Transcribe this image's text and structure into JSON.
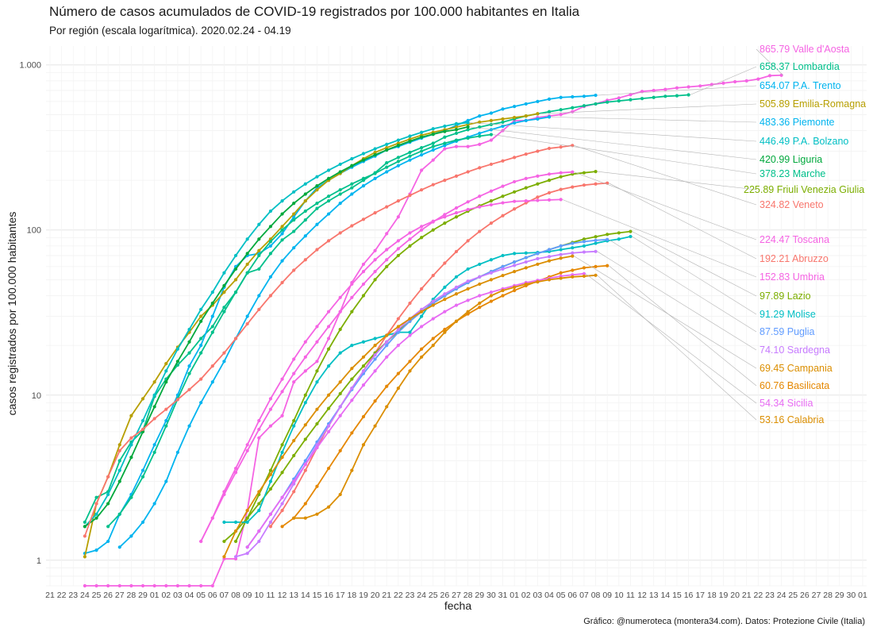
{
  "chart_data": {
    "type": "line",
    "title": "Número de casos acumulados de COVID-19 registrados por 100.000 habitantes en Italia",
    "subtitle": "Por región (escala logarítmica). 2020.02.24 - 04.19",
    "caption": "Gráfico: @numeroteca (montera34.com). Datos: Protezione Civile (Italia)",
    "xlabel": "fecha",
    "ylabel": "casos registrados por 100.000 habitantes",
    "yscale": "log",
    "ylim": [
      0.7,
      1300
    ],
    "xlim": [
      "2020-02-21",
      "2020-05-01"
    ],
    "grid": true,
    "legend": "direct labels at right end of lines",
    "y_ticks": [
      {
        "value": 1,
        "label": "1"
      },
      {
        "value": 10,
        "label": "10"
      },
      {
        "value": 100,
        "label": "100"
      },
      {
        "value": 1000,
        "label": "1.000"
      }
    ],
    "x_ticks": [
      "21",
      "22",
      "23",
      "24",
      "25",
      "26",
      "27",
      "28",
      "29",
      "01",
      "02",
      "03",
      "04",
      "05",
      "06",
      "07",
      "08",
      "09",
      "10",
      "11",
      "12",
      "13",
      "14",
      "15",
      "16",
      "17",
      "18",
      "19",
      "20",
      "21",
      "22",
      "23",
      "24",
      "25",
      "26",
      "27",
      "28",
      "29",
      "30",
      "31",
      "01",
      "02",
      "03",
      "04",
      "05",
      "06",
      "07",
      "08",
      "09",
      "10",
      "11",
      "12",
      "13",
      "14",
      "15",
      "16",
      "17",
      "18",
      "19",
      "20",
      "21",
      "22",
      "23",
      "24",
      "25",
      "26",
      "27",
      "28",
      "29",
      "30",
      "01"
    ],
    "x_start": "2020-02-21",
    "series": [
      {
        "name": "Valle d'Aosta",
        "label": "865.79 Valle d'Aosta",
        "color": "#f564e3",
        "start": "2020-02-24",
        "values": [
          0.7,
          0.7,
          0.7,
          0.7,
          0.7,
          0.7,
          0.7,
          0.7,
          0.7,
          0.7,
          0.7,
          0.7,
          1.02,
          1.02,
          2.0,
          5.5,
          6.5,
          7.5,
          12,
          14,
          16,
          22,
          32,
          48,
          62,
          75,
          95,
          120,
          165,
          230,
          265,
          310,
          320,
          320,
          330,
          350,
          400,
          460,
          460,
          480,
          490,
          500,
          520,
          560,
          580,
          610,
          630,
          660,
          690,
          700,
          710,
          725,
          735,
          745,
          760,
          775,
          790,
          800,
          820,
          860,
          865.79
        ]
      },
      {
        "name": "Lombardia",
        "label": "658.37 Lombardia",
        "color": "#00c08b",
        "start": "2020-02-24",
        "values": [
          1.7,
          2.4,
          2.6,
          4.0,
          5.2,
          6.1,
          9.8,
          12.5,
          15.2,
          18.0,
          22.0,
          26.0,
          34.0,
          42.0,
          55.0,
          58.0,
          72.0,
          87.0,
          98.0,
          115.0,
          135.0,
          150.0,
          165.0,
          180.0,
          200.0,
          222.0,
          255.0,
          275.0,
          295.0,
          315.0,
          335.0,
          365.0,
          385.0,
          405.0,
          420.0,
          435.0,
          450.0,
          470.0,
          490.0,
          505.0,
          520.0,
          535.0,
          550.0,
          565.0,
          580.0,
          595.0,
          605.0,
          615.0,
          625.0,
          635.0,
          645.0,
          650.0,
          658.37
        ]
      },
      {
        "name": "P.A. Trento",
        "label": "654.07 P.A. Trento",
        "color": "#00b4ef",
        "start": "2020-02-24",
        "values": [
          1.1,
          1.15,
          1.3,
          1.9,
          2.5,
          3.5,
          5.0,
          7.0,
          10.0,
          15.0,
          20.0,
          30.0,
          45.0,
          60.0,
          70.0,
          72.0,
          80.0,
          95.0,
          120.0,
          150.0,
          180.0,
          200.0,
          220.0,
          240.0,
          260.0,
          280.0,
          305.0,
          320.0,
          340.0,
          360.0,
          380.0,
          400.0,
          430.0,
          460.0,
          490.0,
          510.0,
          540.0,
          560.0,
          580.0,
          600.0,
          620.0,
          635.0,
          640.0,
          645.0,
          654.07
        ]
      },
      {
        "name": "Emilia-Romagna",
        "label": "505.89 Emilia-Romagna",
        "color": "#b79f00",
        "start": "2020-02-24",
        "values": [
          1.05,
          2.2,
          3.2,
          5.0,
          7.5,
          9.5,
          12.0,
          15.5,
          19.5,
          24.0,
          30.0,
          35.0,
          42.0,
          50.0,
          62.0,
          75.0,
          88.0,
          105.0,
          125.0,
          150.0,
          175.0,
          200.0,
          220.0,
          245.0,
          270.0,
          295.0,
          315.0,
          335.0,
          355.0,
          375.0,
          390.0,
          405.0,
          420.0,
          435.0,
          450.0,
          460.0,
          470.0,
          480.0,
          490.0,
          505.89
        ]
      },
      {
        "name": "Piemonte",
        "label": "483.36 Piemonte",
        "color": "#00b4ef",
        "start": "2020-02-27",
        "values": [
          1.2,
          1.4,
          1.7,
          2.2,
          3.0,
          4.5,
          6.5,
          9.0,
          12.0,
          16.0,
          22.0,
          30.0,
          40.0,
          52.0,
          65.0,
          78.0,
          92.0,
          108.0,
          125.0,
          145.0,
          165.0,
          185.0,
          205.0,
          225.0,
          245.0,
          265.0,
          285.0,
          305.0,
          325.0,
          345.0,
          365.0,
          385.0,
          405.0,
          425.0,
          445.0,
          460.0,
          470.0,
          483.36
        ]
      },
      {
        "name": "P.A. Bolzano",
        "label": "446.49 P.A. Bolzano",
        "color": "#00bfc4",
        "start": "2020-02-24",
        "values": [
          1.6,
          1.9,
          2.5,
          3.5,
          5.0,
          7.0,
          10.0,
          14.0,
          19.0,
          25.0,
          33.0,
          42.0,
          55.0,
          70.0,
          88.0,
          108.0,
          130.0,
          150.0,
          170.0,
          190.0,
          210.0,
          230.0,
          250.0,
          270.0,
          290.0,
          310.0,
          330.0,
          350.0,
          370.0,
          390.0,
          410.0,
          425.0,
          440.0,
          446.49
        ]
      },
      {
        "name": "Liguria",
        "label": "420.99 Liguria",
        "color": "#00a83c",
        "start": "2020-02-24",
        "values": [
          1.6,
          1.8,
          2.2,
          3.0,
          4.2,
          6.0,
          8.5,
          12.0,
          16.0,
          21.0,
          28.0,
          36.0,
          46.0,
          58.0,
          72.0,
          88.0,
          105.0,
          125.0,
          145.0,
          165.0,
          185.0,
          205.0,
          225.0,
          245.0,
          265.0,
          285.0,
          305.0,
          325.0,
          345.0,
          365.0,
          380.0,
          395.0,
          405.0,
          420.99
        ]
      },
      {
        "name": "Marche",
        "label": "378.23 Marche",
        "color": "#00c08b",
        "start": "2020-02-26",
        "values": [
          1.6,
          1.9,
          2.4,
          3.2,
          4.5,
          6.5,
          9.5,
          13.5,
          18.0,
          24.0,
          32.0,
          42.0,
          55.0,
          70.0,
          85.0,
          100.0,
          115.0,
          130.0,
          145.0,
          160.0,
          175.0,
          190.0,
          205.0,
          220.0,
          240.0,
          260.0,
          280.0,
          300.0,
          320.0,
          335.0,
          350.0,
          360.0,
          370.0,
          378.23
        ]
      },
      {
        "name": "Friuli Venezia Giulia",
        "label": "225.89 Friuli Venezia Giulia",
        "color": "#7cae00",
        "start": "2020-03-08",
        "values": [
          1.3,
          1.8,
          2.5,
          3.5,
          5.0,
          7.0,
          10.0,
          14.0,
          19.0,
          25.0,
          32.0,
          40.0,
          50.0,
          60.0,
          70.0,
          80.0,
          90.0,
          100.0,
          110.0,
          120.0,
          130.0,
          140.0,
          150.0,
          160.0,
          170.0,
          180.0,
          190.0,
          200.0,
          210.0,
          218.0,
          222.0,
          225.89
        ]
      },
      {
        "name": "Veneto",
        "label": "324.82 Veneto",
        "color": "#f8766d",
        "start": "2020-02-24",
        "values": [
          1.4,
          2.2,
          3.2,
          4.6,
          5.5,
          6.2,
          7.2,
          8.2,
          9.4,
          10.8,
          12.5,
          15.0,
          18.0,
          22.0,
          27.0,
          33.0,
          40.0,
          48.0,
          57.0,
          66.0,
          76.0,
          86.0,
          96.0,
          106.0,
          116.0,
          127.0,
          138.0,
          150.0,
          162.0,
          175.0,
          188.0,
          200.0,
          212.0,
          225.0,
          238.0,
          250.0,
          262.0,
          275.0,
          288.0,
          300.0,
          312.0,
          318.0,
          324.82
        ]
      },
      {
        "name": "Toscana",
        "label": "224.47 Toscana",
        "color": "#f564e3",
        "start": "2020-03-05",
        "values": [
          1.3,
          1.8,
          2.5,
          3.4,
          4.6,
          6.2,
          8.2,
          10.5,
          13.5,
          17.0,
          21.0,
          26.0,
          32.0,
          39.0,
          47.0,
          56.0,
          66.0,
          77.0,
          88.0,
          100.0,
          112.0,
          124.0,
          136.0,
          148.0,
          160.0,
          172.0,
          184.0,
          196.0,
          205.0,
          212.0,
          218.0,
          222.0,
          224.47
        ]
      },
      {
        "name": "Abruzzo",
        "label": "192.21 Abruzzo",
        "color": "#f8766d",
        "start": "2020-03-11",
        "values": [
          1.6,
          2.0,
          2.6,
          3.5,
          4.8,
          6.5,
          8.5,
          11.0,
          14.0,
          18.0,
          23.0,
          29.0,
          36.0,
          44.0,
          53.0,
          63.0,
          74.0,
          86.0,
          98.0,
          110.0,
          122.0,
          134.0,
          146.0,
          158.0,
          168.0,
          176.0,
          182.0,
          187.0,
          190.0,
          192.21
        ]
      },
      {
        "name": "Umbria",
        "label": "152.83 Umbria",
        "color": "#f564e3",
        "start": "2020-03-05",
        "values": [
          1.3,
          1.8,
          2.6,
          3.6,
          5.0,
          7.0,
          9.5,
          12.5,
          16.5,
          21.0,
          26.0,
          32.0,
          39.0,
          47.0,
          56.0,
          66.0,
          76.0,
          86.0,
          96.0,
          105.0,
          113.0,
          120.0,
          127.0,
          133.0,
          138.0,
          142.0,
          146.0,
          149.0,
          150.0,
          151.0,
          152.0,
          152.83
        ]
      },
      {
        "name": "Lazio",
        "label": "97.89 Lazio",
        "color": "#7cae00",
        "start": "2020-03-07",
        "values": [
          1.3,
          1.5,
          1.8,
          2.2,
          2.7,
          3.4,
          4.3,
          5.4,
          6.7,
          8.3,
          10.2,
          12.5,
          15.0,
          18.0,
          21.0,
          24.5,
          28.0,
          32.0,
          36.0,
          40.0,
          44.0,
          48.0,
          52.0,
          56.0,
          60.0,
          64.0,
          68.0,
          72.0,
          76.0,
          80.0,
          84.0,
          88.0,
          91.0,
          94.0,
          96.0,
          97.89
        ]
      },
      {
        "name": "Molise",
        "label": "91.29 Molise",
        "color": "#00bfc4",
        "start": "2020-03-07",
        "values": [
          1.7,
          1.7,
          1.7,
          2.0,
          3.0,
          4.5,
          6.5,
          9.0,
          12.0,
          15.0,
          18.0,
          20.0,
          21.0,
          22.0,
          23.0,
          24.0,
          24.0,
          30.0,
          38.0,
          45.0,
          52.0,
          58.0,
          62.0,
          66.0,
          70.0,
          72.0,
          72.5,
          73.0,
          74.0,
          76.0,
          78.0,
          80.0,
          83.0,
          86.0,
          88.0,
          91.29
        ]
      },
      {
        "name": "Puglia",
        "label": "87.59 Puglia",
        "color": "#619cff",
        "start": "2020-03-09",
        "values": [
          1.2,
          1.5,
          1.9,
          2.4,
          3.1,
          4.0,
          5.2,
          6.7,
          8.5,
          10.8,
          13.5,
          16.5,
          20.0,
          24.0,
          28.0,
          32.0,
          36.0,
          40.0,
          44.0,
          48.0,
          52.0,
          56.0,
          60.0,
          64.0,
          68.0,
          72.0,
          76.0,
          80.0,
          83.0,
          85.0,
          86.5,
          87.59
        ]
      },
      {
        "name": "Sardegna",
        "label": "74.10 Sardegna",
        "color": "#c77cff",
        "start": "2020-03-08",
        "values": [
          1.05,
          1.1,
          1.3,
          1.7,
          2.2,
          2.9,
          3.8,
          5.0,
          6.5,
          8.5,
          11.0,
          14.0,
          17.5,
          21.0,
          25.0,
          29.0,
          33.0,
          37.0,
          41.0,
          45.0,
          49.0,
          52.0,
          55.0,
          58.0,
          61.0,
          64.0,
          67.0,
          69.0,
          71.0,
          72.5,
          73.5,
          74.1
        ]
      },
      {
        "name": "Campania",
        "label": "69.45 Campania",
        "color": "#db8e00",
        "start": "2020-03-07",
        "values": [
          1.05,
          1.5,
          2.0,
          2.6,
          3.3,
          4.2,
          5.3,
          6.6,
          8.2,
          10.0,
          12.0,
          14.5,
          17.0,
          20.0,
          23.0,
          26.0,
          29.0,
          32.0,
          35.0,
          38.0,
          41.0,
          44.0,
          47.0,
          50.0,
          53.0,
          56.0,
          59.0,
          62.0,
          65.0,
          67.5,
          69.45
        ]
      },
      {
        "name": "Basilicata",
        "label": "60.76 Basilicata",
        "color": "#e58700",
        "start": "2020-03-12",
        "values": [
          1.6,
          1.8,
          2.2,
          2.8,
          3.6,
          4.6,
          5.9,
          7.4,
          9.2,
          11.3,
          13.5,
          16.0,
          19.0,
          22.0,
          25.0,
          28.0,
          31.0,
          34.0,
          37.0,
          40.0,
          43.0,
          46.0,
          49.0,
          52.0,
          55.0,
          57.0,
          59.0,
          60.0,
          60.76
        ]
      },
      {
        "name": "Sicilia",
        "label": "54.34 Sicilia",
        "color": "#e76bf3",
        "start": "2020-03-09",
        "values": [
          1.2,
          1.5,
          1.9,
          2.4,
          3.0,
          3.8,
          4.8,
          6.0,
          7.5,
          9.3,
          11.5,
          14.0,
          17.0,
          20.0,
          23.0,
          26.0,
          29.0,
          32.0,
          35.0,
          37.5,
          40.0,
          42.0,
          44.0,
          46.0,
          48.0,
          49.5,
          51.0,
          52.5,
          53.5,
          54.34
        ]
      },
      {
        "name": "Calabria",
        "label": "53.16 Calabria",
        "color": "#db8e00",
        "start": "2020-03-13",
        "values": [
          1.8,
          1.8,
          1.9,
          2.1,
          2.5,
          3.5,
          5.0,
          6.5,
          8.5,
          11.0,
          14.0,
          17.0,
          20.0,
          24.0,
          28.0,
          32.0,
          36.0,
          40.0,
          43.0,
          45.0,
          47.0,
          48.5,
          50.0,
          51.0,
          52.0,
          52.5,
          53.16
        ]
      }
    ]
  }
}
